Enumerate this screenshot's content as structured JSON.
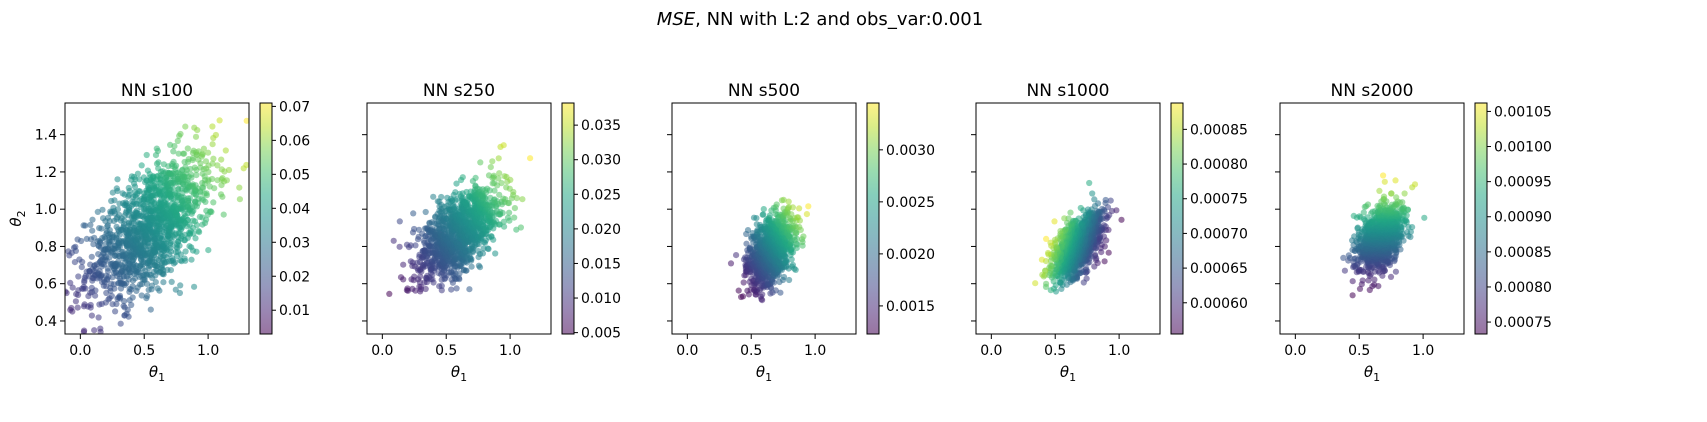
{
  "figure": {
    "suptitle_italic": "MSE",
    "suptitle_rest": ", NN with L:2 and obs_var:0.001",
    "colormap": "viridis",
    "point_alpha": 0.55
  },
  "chart_data": [
    {
      "type": "scatter",
      "title": "NN s100",
      "xlabel": "θ1",
      "ylabel": "θ2",
      "xlim": [
        -0.12,
        1.32
      ],
      "ylim": [
        0.33,
        1.57
      ],
      "xticks": [
        "0.0",
        "0.5",
        "1.0"
      ],
      "xtick_values": [
        0.0,
        0.5,
        1.0
      ],
      "yticks": [
        "0.4",
        "0.6",
        "0.8",
        "1.0",
        "1.2",
        "1.4"
      ],
      "ytick_values": [
        0.4,
        0.6,
        0.8,
        1.0,
        1.2,
        1.4
      ],
      "colorbar": {
        "range": [
          0.003,
          0.071
        ],
        "ticks": [
          "0.01",
          "0.02",
          "0.03",
          "0.04",
          "0.05",
          "0.06",
          "0.07"
        ],
        "tick_values": [
          0.01,
          0.02,
          0.03,
          0.04,
          0.05,
          0.06,
          0.07
        ]
      },
      "cloud": {
        "center": [
          0.55,
          0.9
        ],
        "spread": [
          0.25,
          0.2
        ],
        "corr": 0.6,
        "n": 1400,
        "color_dir": [
          1.2,
          1.0
        ],
        "color_offset": 0.0
      }
    },
    {
      "type": "scatter",
      "title": "NN s250",
      "xlabel": "θ1",
      "ylabel": "",
      "xlim": [
        -0.12,
        1.32
      ],
      "ylim": [
        0.33,
        1.57
      ],
      "xticks": [
        "0.0",
        "0.5",
        "1.0"
      ],
      "xtick_values": [
        0.0,
        0.5,
        1.0
      ],
      "colorbar": {
        "range": [
          0.0048,
          0.0382
        ],
        "ticks": [
          "0.005",
          "0.010",
          "0.015",
          "0.020",
          "0.025",
          "0.030",
          "0.035"
        ],
        "tick_values": [
          0.005,
          0.01,
          0.015,
          0.02,
          0.025,
          0.03,
          0.035
        ]
      },
      "cloud": {
        "center": [
          0.6,
          0.87
        ],
        "spread": [
          0.17,
          0.13
        ],
        "corr": 0.6,
        "n": 1200,
        "color_dir": [
          1.2,
          1.0
        ],
        "color_offset": 0.0
      }
    },
    {
      "type": "scatter",
      "title": "NN s500",
      "xlabel": "θ1",
      "ylabel": "",
      "xlim": [
        -0.12,
        1.32
      ],
      "ylim": [
        0.33,
        1.57
      ],
      "xticks": [
        "0.0",
        "0.5",
        "1.0"
      ],
      "xtick_values": [
        0.0,
        0.5,
        1.0
      ],
      "colorbar": {
        "range": [
          0.00123,
          0.00345
        ],
        "ticks": [
          "0.0015",
          "0.0020",
          "0.0025",
          "0.0030"
        ],
        "tick_values": [
          0.0015,
          0.002,
          0.0025,
          0.003
        ]
      },
      "cloud": {
        "center": [
          0.65,
          0.77
        ],
        "spread": [
          0.09,
          0.1
        ],
        "corr": 0.45,
        "n": 1000,
        "color_dir": [
          0.9,
          1.0
        ],
        "color_offset": 0.0
      }
    },
    {
      "type": "scatter",
      "title": "NN s1000",
      "xlabel": "θ1",
      "ylabel": "",
      "xlim": [
        -0.12,
        1.32
      ],
      "ylim": [
        0.33,
        1.57
      ],
      "xticks": [
        "0.0",
        "0.5",
        "1.0"
      ],
      "xtick_values": [
        0.0,
        0.5,
        1.0
      ],
      "colorbar": {
        "range": [
          0.000555,
          0.000888
        ],
        "ticks": [
          "0.00060",
          "0.00065",
          "0.00070",
          "0.00075",
          "0.00080",
          "0.00085"
        ],
        "tick_values": [
          0.0006,
          0.00065,
          0.0007,
          0.00075,
          0.0008,
          0.00085
        ]
      },
      "cloud": {
        "center": [
          0.67,
          0.8
        ],
        "spread": [
          0.1,
          0.09
        ],
        "corr": 0.55,
        "n": 1000,
        "color_dir": [
          -1.0,
          0.45
        ],
        "color_offset": 0.0
      }
    },
    {
      "type": "scatter",
      "title": "NN s2000",
      "xlabel": "θ1",
      "ylabel": "",
      "xlim": [
        -0.12,
        1.32
      ],
      "ylim": [
        0.33,
        1.57
      ],
      "xticks": [
        "0.0",
        "0.5",
        "1.0"
      ],
      "xtick_values": [
        0.0,
        0.5,
        1.0
      ],
      "colorbar": {
        "range": [
          0.000733,
          0.001062
        ],
        "ticks": [
          "0.00075",
          "0.00080",
          "0.00085",
          "0.00090",
          "0.00095",
          "0.00100",
          "0.00105"
        ],
        "tick_values": [
          0.00075,
          0.0008,
          0.00085,
          0.0009,
          0.00095,
          0.001,
          0.00105
        ]
      },
      "cloud": {
        "center": [
          0.67,
          0.85
        ],
        "spread": [
          0.09,
          0.09
        ],
        "corr": 0.4,
        "n": 1000,
        "color_dir": [
          0.0,
          1.0
        ],
        "color_offset": 0.0
      }
    }
  ]
}
